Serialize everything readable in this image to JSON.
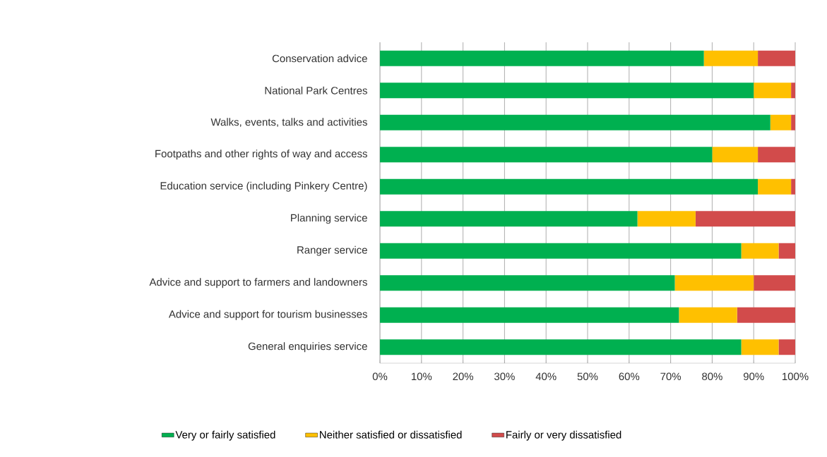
{
  "chart_data": {
    "type": "bar",
    "orientation": "horizontal",
    "stacked": true,
    "categories": [
      "Conservation advice",
      "National Park Centres",
      "Walks, events, talks and activities",
      "Footpaths and other rights of way and access",
      "Education service (including Pinkery Centre)",
      "Planning service",
      "Ranger service",
      "Advice and support to farmers and landowners",
      "Advice and support for tourism businesses",
      "General enquiries service"
    ],
    "series": [
      {
        "name": "Very or fairly satisfied",
        "color": "#00b050",
        "values": [
          78,
          90,
          94,
          80,
          91,
          62,
          87,
          71,
          72,
          87
        ]
      },
      {
        "name": "Neither satisfied or dissatisfied",
        "color": "#ffc000",
        "values": [
          13,
          9,
          5,
          11,
          8,
          14,
          9,
          19,
          14,
          9
        ]
      },
      {
        "name": "Fairly or very dissatisfied",
        "color": "#d24b4b",
        "values": [
          9,
          1,
          1,
          9,
          1,
          24,
          4,
          10,
          14,
          4
        ]
      }
    ],
    "xlim": [
      0,
      100
    ],
    "xticks": [
      {
        "value": 0,
        "label": "0%"
      },
      {
        "value": 10,
        "label": "10%"
      },
      {
        "value": 20,
        "label": "20%"
      },
      {
        "value": 30,
        "label": "30%"
      },
      {
        "value": 40,
        "label": "40%"
      },
      {
        "value": 50,
        "label": "50%"
      },
      {
        "value": 60,
        "label": "60%"
      },
      {
        "value": 70,
        "label": "70%"
      },
      {
        "value": 80,
        "label": "80%"
      },
      {
        "value": 90,
        "label": "90%"
      },
      {
        "value": 100,
        "label": "100%"
      }
    ],
    "grid": "x",
    "legend": "bottom"
  }
}
